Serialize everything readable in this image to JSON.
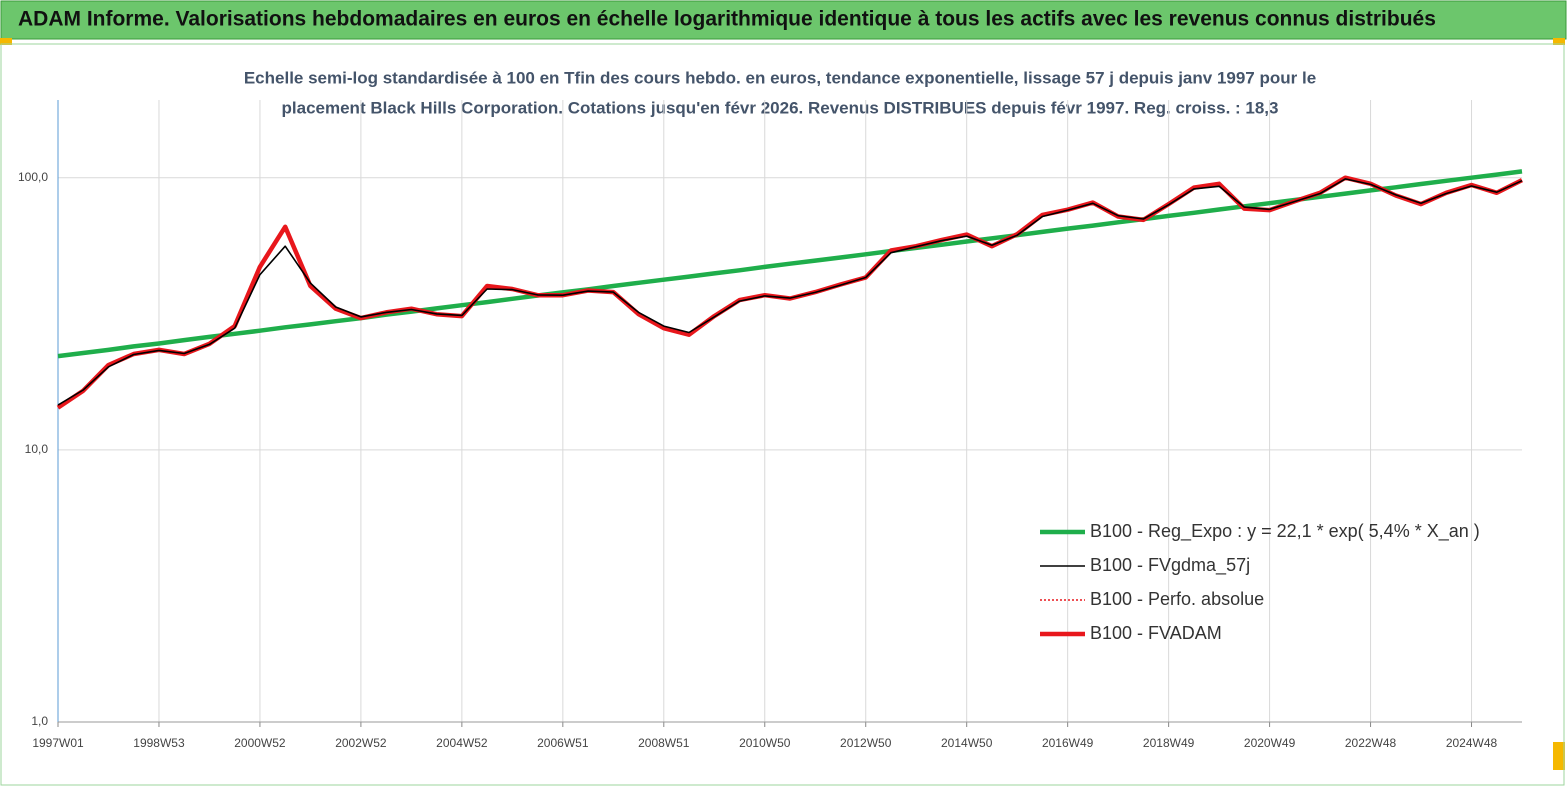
{
  "chart_data": {
    "type": "line",
    "title": "ADAM Informe. Valorisations hebdomadaires en euros en échelle logarithmique identique à tous les actifs avec les revenus connus distribués",
    "subtitle": [
      "Echelle semi-log standardisée à 100 en Tfin des cours hebdo. en euros, tendance exponentielle, lissage 57 j depuis janv 1997 pour le",
      "placement Black Hills Corporation. Cotations jusqu'en févr 2026. Revenus DISTRIBUES depuis févr 1997. Reg. croiss. : 18,3"
    ],
    "categories": [
      "1997W01",
      null,
      null,
      null,
      "1998W53",
      null,
      null,
      null,
      "2000W52",
      null,
      null,
      null,
      "2002W52",
      null,
      null,
      null,
      "2004W52",
      null,
      null,
      null,
      "2006W51",
      null,
      null,
      null,
      "2008W51",
      null,
      null,
      null,
      "2010W50",
      null,
      null,
      null,
      "2012W50",
      null,
      null,
      null,
      "2014W50",
      null,
      null,
      null,
      "2016W49",
      null,
      null,
      null,
      "2018W49",
      null,
      null,
      null,
      "2020W49",
      null,
      null,
      null,
      "2022W48",
      null,
      null,
      null,
      "2024W48",
      null,
      null
    ],
    "log_scale": true,
    "ylim": [
      1,
      193
    ],
    "yticks": [
      {
        "value": 1,
        "label": "1,0"
      },
      {
        "value": 10,
        "label": "10,0"
      },
      {
        "value": 100,
        "label": "100,0"
      }
    ],
    "grid": true,
    "legend": "lower right",
    "series": [
      {
        "name": "B100 - Reg_Expo : y = 22,1 *  exp( 5,4% *  X_an )",
        "color": "#1fae4b",
        "style": "thick",
        "values": [
          22.1,
          22.7,
          23.3,
          24.0,
          24.6,
          25.3,
          26.0,
          26.7,
          27.4,
          28.2,
          28.9,
          29.7,
          30.5,
          31.4,
          32.2,
          33.1,
          34.0,
          34.9,
          35.9,
          36.9,
          37.9,
          38.9,
          40.0,
          41.1,
          42.2,
          43.3,
          44.5,
          45.7,
          47.0,
          48.3,
          49.6,
          50.9,
          52.3,
          53.8,
          55.2,
          56.7,
          58.3,
          59.9,
          61.5,
          63.2,
          65.0,
          66.7,
          68.6,
          70.4,
          72.4,
          74.3,
          76.4,
          78.5,
          80.6,
          82.8,
          85.1,
          87.4,
          89.8,
          92.2,
          94.8,
          97.4,
          100.0,
          102.7,
          105.5
        ]
      },
      {
        "name": "B100 - FVgdma_57j",
        "color": "#000000",
        "style": "thin",
        "values": [
          14.6,
          16.6,
          20.2,
          22.4,
          23.2,
          22.6,
          24.4,
          28.0,
          44.0,
          56.0,
          41.0,
          33.5,
          30.8,
          32.0,
          32.8,
          31.6,
          31.2,
          39.0,
          38.8,
          37.1,
          37.0,
          38.3,
          38.0,
          32.0,
          28.5,
          27.0,
          30.8,
          35.2,
          36.8,
          36.1,
          37.9,
          40.3,
          43.0,
          53.0,
          55.8,
          58.7,
          61.0,
          56.5,
          61.5,
          72.0,
          76.0,
          80.5,
          72.5,
          70.5,
          79.5,
          91.0,
          93.0,
          78.0,
          76.5,
          81.8,
          87.5,
          99.0,
          94.5,
          86.5,
          80.5,
          87.5,
          93.2,
          88.5,
          97.5
        ]
      },
      {
        "name": "B100 - Perfo. absolue",
        "color": "#e8171c",
        "style": "dotted",
        "values": [
          14.3,
          16.5,
          20.5,
          22.5,
          23.3,
          22.5,
          24.5,
          28.5,
          47,
          66,
          40,
          33,
          30.5,
          32,
          33,
          31.5,
          31,
          40,
          39,
          37,
          37,
          38.5,
          38,
          31.5,
          28,
          26.5,
          31,
          35.5,
          37,
          36,
          38,
          40.5,
          43,
          54,
          56,
          59,
          61.8,
          56,
          62,
          73,
          76.3,
          81,
          72,
          70,
          80,
          92,
          95,
          77,
          76,
          82,
          88,
          100,
          95,
          86,
          80,
          88,
          94,
          88,
          98
        ]
      },
      {
        "name": "B100 - FVADAM",
        "color": "#e8171c",
        "style": "thick",
        "values": [
          14.3,
          16.5,
          20.5,
          22.5,
          23.3,
          22.5,
          24.5,
          28.5,
          47,
          66,
          40,
          33,
          30.5,
          32,
          33,
          31.5,
          31,
          40,
          39,
          37,
          37,
          38.5,
          38,
          31.5,
          28,
          26.5,
          31,
          35.5,
          37,
          36,
          38,
          40.5,
          43,
          54,
          56,
          59,
          61.8,
          56,
          62,
          73,
          76.3,
          81,
          72,
          70,
          80,
          92,
          95,
          77,
          76,
          82,
          88,
          100,
          95,
          86,
          80,
          88,
          94,
          88,
          98
        ]
      }
    ]
  }
}
